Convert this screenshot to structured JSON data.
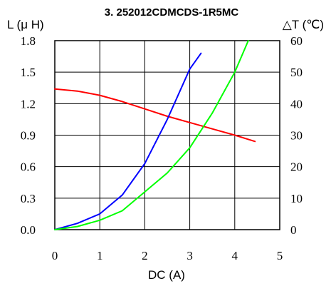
{
  "chart_data": {
    "type": "line",
    "title": "3. 252012CDMCDS-1R5MC",
    "xlabel": "DC (A)",
    "ylabel_left": "L (μ H)",
    "ylabel_right": "△T (℃)",
    "xlim": [
      0,
      5
    ],
    "ylim_left": [
      0,
      1.8
    ],
    "ylim_right": [
      0,
      60
    ],
    "x_ticks": [
      "0",
      "1",
      "2",
      "3",
      "4",
      "5"
    ],
    "y_left_ticks": [
      "0.0",
      "0.3",
      "0.6",
      "0.9",
      "1.2",
      "1.5",
      "1.8"
    ],
    "y_right_ticks": [
      "0",
      "10",
      "20",
      "30",
      "40",
      "50",
      "60"
    ],
    "grid": true,
    "series": [
      {
        "color": "#ff0000",
        "axis": "left",
        "x": [
          0,
          0.5,
          1.0,
          1.5,
          2.0,
          2.5,
          3.0,
          3.5,
          4.0,
          4.45
        ],
        "y": [
          1.34,
          1.32,
          1.28,
          1.22,
          1.15,
          1.08,
          1.02,
          0.96,
          0.9,
          0.84
        ]
      },
      {
        "color": "#0000ff",
        "axis": "right",
        "x": [
          0,
          0.5,
          1.0,
          1.5,
          2.0,
          2.5,
          3.0,
          3.25
        ],
        "y": [
          0,
          2,
          5,
          11,
          21,
          35,
          51,
          56
        ]
      },
      {
        "color": "#00ff00",
        "axis": "right",
        "x": [
          0,
          0.5,
          1.0,
          1.5,
          2.0,
          2.5,
          3.0,
          3.5,
          4.0,
          4.3
        ],
        "y": [
          0,
          1,
          3,
          6,
          12,
          18,
          26,
          37,
          50,
          60
        ]
      }
    ]
  }
}
